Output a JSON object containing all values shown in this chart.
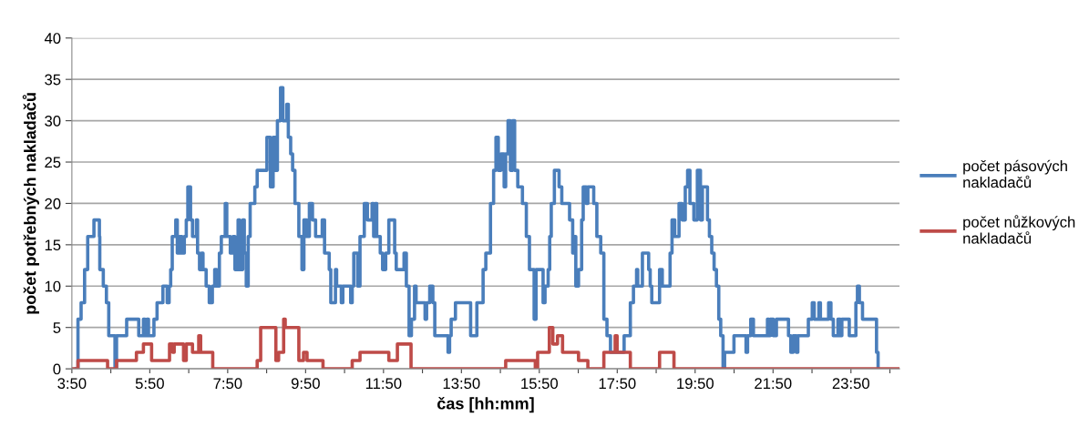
{
  "chart_data": {
    "type": "step",
    "xlabel": "čas [hh:mm]",
    "ylabel": "počet potřebných nakladačů",
    "xlim": [
      3.8333,
      25.08
    ],
    "ylim": [
      0,
      40
    ],
    "yticks": [
      0,
      5,
      10,
      15,
      20,
      25,
      30,
      35,
      40
    ],
    "xticks": [
      {
        "value": 3.8333,
        "label": "3:50"
      },
      {
        "value": 4.8333,
        "label": null
      },
      {
        "value": 5.8333,
        "label": "5:50"
      },
      {
        "value": 6.8333,
        "label": null
      },
      {
        "value": 7.8333,
        "label": "7:50"
      },
      {
        "value": 8.8333,
        "label": null
      },
      {
        "value": 9.8333,
        "label": "9:50"
      },
      {
        "value": 10.8333,
        "label": null
      },
      {
        "value": 11.8333,
        "label": "11:50"
      },
      {
        "value": 12.8333,
        "label": null
      },
      {
        "value": 13.8333,
        "label": "13:50"
      },
      {
        "value": 14.8333,
        "label": null
      },
      {
        "value": 15.8333,
        "label": "15:50"
      },
      {
        "value": 16.8333,
        "label": null
      },
      {
        "value": 17.8333,
        "label": "17:50"
      },
      {
        "value": 18.8333,
        "label": null
      },
      {
        "value": 19.8333,
        "label": "19:50"
      },
      {
        "value": 20.8333,
        "label": null
      },
      {
        "value": 21.8333,
        "label": "21:50"
      },
      {
        "value": 22.8333,
        "label": null
      },
      {
        "value": 23.8333,
        "label": "23:50"
      },
      {
        "value": 24.8333,
        "label": null
      }
    ],
    "grid": "y",
    "legend": "right",
    "line_style": "solid",
    "marker": "none",
    "series": [
      {
        "name": "počet pásových\nnakladačů",
        "color": "#4a7ebb",
        "x": [
          3.94,
          3.99,
          4.07,
          4.16,
          4.24,
          4.4,
          4.54,
          4.55,
          4.64,
          4.72,
          4.78,
          4.94,
          4.98,
          5.24,
          5.55,
          5.67,
          5.71,
          5.76,
          5.8,
          5.94,
          6.02,
          6.17,
          6.28,
          6.33,
          6.37,
          6.41,
          6.5,
          6.54,
          6.6,
          6.66,
          6.72,
          6.77,
          6.81,
          6.88,
          6.93,
          7.03,
          7.06,
          7.11,
          7.16,
          7.2,
          7.28,
          7.36,
          7.44,
          7.5,
          7.55,
          7.62,
          7.67,
          7.77,
          7.81,
          7.9,
          7.97,
          8.02,
          8.1,
          8.14,
          8.22,
          8.26,
          8.31,
          8.36,
          8.41,
          8.53,
          8.59,
          8.84,
          8.93,
          9.0,
          9.06,
          9.11,
          9.19,
          9.25,
          9.35,
          9.39,
          9.45,
          9.5,
          9.56,
          9.66,
          9.74,
          9.79,
          9.86,
          9.93,
          10.01,
          10.09,
          10.26,
          10.32,
          10.44,
          10.48,
          10.6,
          10.63,
          10.75,
          10.79,
          10.99,
          11.03,
          11.07,
          11.17,
          11.23,
          11.34,
          11.42,
          11.54,
          11.58,
          11.62,
          11.66,
          11.75,
          11.81,
          11.89,
          11.97,
          12.12,
          12.16,
          12.36,
          12.42,
          12.49,
          12.55,
          12.63,
          12.67,
          12.9,
          12.94,
          13.02,
          13.1,
          13.15,
          13.49,
          13.53,
          13.57,
          13.68,
          14.07,
          14.23,
          14.39,
          14.46,
          14.58,
          14.66,
          14.72,
          14.78,
          14.85,
          14.93,
          14.97,
          15.03,
          15.09,
          15.15,
          15.2,
          15.28,
          15.4,
          15.5,
          15.58,
          15.7,
          15.75,
          15.93,
          15.98,
          16.06,
          16.1,
          16.14,
          16.22,
          16.34,
          16.41,
          16.61,
          16.69,
          16.73,
          16.77,
          16.84,
          16.92,
          16.96,
          17.04,
          17.08,
          17.23,
          17.31,
          17.41,
          17.49,
          17.57,
          17.66,
          18.01,
          18.17,
          18.25,
          18.33,
          18.36,
          18.48,
          18.64,
          18.68,
          18.72,
          18.92,
          18.99,
          19.19,
          19.24,
          19.31,
          19.42,
          19.5,
          19.58,
          19.64,
          19.7,
          19.8,
          19.89,
          19.97,
          20.02,
          20.15,
          20.2,
          20.26,
          20.32,
          20.38,
          20.44,
          20.49,
          20.55,
          20.59,
          20.83,
          21.14,
          21.18,
          21.26,
          21.33,
          21.69,
          21.72,
          21.76,
          21.84,
          21.92,
          22.23,
          22.29,
          22.35,
          22.43,
          22.47,
          22.74,
          22.84,
          22.89,
          23.01,
          23.05,
          23.26,
          23.32,
          23.38,
          23.5,
          23.56,
          23.6,
          23.79,
          23.96,
          24.0,
          24.05,
          24.13,
          24.49,
          24.53
        ],
        "values": [
          0,
          6,
          8,
          12,
          16,
          18,
          16,
          12,
          10,
          8,
          4,
          0,
          4,
          6,
          4,
          6,
          4,
          6,
          4,
          6,
          8,
          10,
          8,
          10,
          12,
          16,
          18,
          14,
          16,
          14,
          16,
          18,
          22,
          18,
          16,
          18,
          14,
          12,
          14,
          12,
          10,
          8,
          10,
          12,
          10,
          14,
          16,
          20,
          16,
          14,
          16,
          12,
          18,
          12,
          18,
          14,
          10,
          16,
          20,
          22,
          24,
          28,
          22,
          28,
          24,
          30,
          34,
          30,
          32,
          28,
          26,
          24,
          20,
          16,
          12,
          18,
          16,
          20,
          18,
          16,
          18,
          14,
          12,
          8,
          12,
          10,
          8,
          10,
          8,
          10,
          14,
          10,
          16,
          20,
          18,
          20,
          16,
          20,
          16,
          14,
          12,
          14,
          18,
          14,
          12,
          14,
          10,
          4,
          6,
          10,
          8,
          6,
          8,
          10,
          8,
          4,
          2,
          4,
          6,
          8,
          4,
          8,
          12,
          14,
          20,
          24,
          28,
          24,
          26,
          22,
          26,
          30,
          24,
          30,
          24,
          22,
          20,
          16,
          12,
          6,
          12,
          8,
          10,
          12,
          16,
          20,
          24,
          22,
          20,
          18,
          14,
          16,
          10,
          12,
          18,
          22,
          20,
          22,
          20,
          16,
          14,
          6,
          4,
          2,
          4,
          8,
          10,
          12,
          10,
          14,
          12,
          10,
          8,
          12,
          10,
          14,
          18,
          16,
          20,
          18,
          22,
          24,
          20,
          18,
          24,
          18,
          22,
          18,
          16,
          14,
          12,
          10,
          6,
          4,
          0,
          2,
          4,
          2,
          4,
          6,
          4,
          6,
          4,
          6,
          4,
          6,
          4,
          2,
          4,
          2,
          4,
          6,
          8,
          6,
          8,
          6,
          8,
          6,
          4,
          6,
          4,
          6,
          4,
          8,
          10,
          8,
          6,
          2,
          0
        ]
      },
      {
        "name": "počet nůžkových\nnakladačů",
        "color": "#be4b48",
        "x": [
          3.8333,
          3.99,
          4.75,
          4.98,
          5.49,
          5.67,
          5.88,
          6.34,
          6.42,
          6.46,
          6.7,
          6.77,
          6.93,
          7.09,
          7.14,
          7.45,
          8.59,
          8.68,
          9.07,
          9.14,
          9.27,
          9.31,
          9.66,
          9.78,
          9.87,
          10.28,
          11.03,
          11.23,
          11.97,
          12.19,
          12.54,
          14.97,
          15.73,
          15.79,
          16.09,
          16.18,
          16.3,
          16.43,
          16.84,
          17.08,
          17.49,
          17.78,
          17.83,
          18.17,
          18.92,
          19.29,
          25.08
        ],
        "values": [
          0,
          1,
          0,
          1,
          2,
          3,
          1,
          3,
          2,
          3,
          1,
          3,
          2,
          4,
          2,
          0,
          1,
          5,
          1,
          2,
          6,
          5,
          1,
          2,
          1,
          0,
          1,
          2,
          1,
          3,
          0,
          1,
          0,
          2,
          5,
          3,
          4,
          2,
          1,
          0,
          2,
          4,
          2,
          0,
          2,
          0,
          0
        ]
      }
    ]
  }
}
